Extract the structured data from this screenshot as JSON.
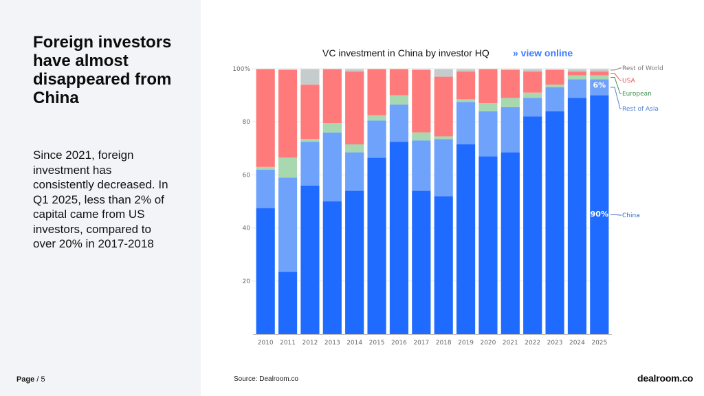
{
  "headline": "Foreign investors have almost disappeared from China",
  "body_text": "Since 2021, foreign investment has consistently decreased. In Q1 2025, less than 2% of capital came from US investors, compared to over 20% in 2017-2018",
  "footer": {
    "page_label": "Page",
    "page_number": "/ 5",
    "source": "Source:  Dealroom.co",
    "logo": "dealroom.co"
  },
  "chart_data": {
    "type": "bar",
    "stacked": true,
    "title": "VC investment in China by investor HQ",
    "link_text": "» view online",
    "categories": [
      "2010",
      "2011",
      "2012",
      "2013",
      "2014",
      "2015",
      "2016",
      "2017",
      "2018",
      "2019",
      "2020",
      "2021",
      "2022",
      "2023",
      "2024",
      "2025"
    ],
    "y_ticks": [
      "20",
      "40",
      "60",
      "80",
      "100%"
    ],
    "ylim": [
      0,
      100
    ],
    "series": [
      {
        "name": "China",
        "color": "#1f6bff",
        "values": [
          47.5,
          23.5,
          56,
          50,
          54,
          66.5,
          72.5,
          54,
          52,
          71.5,
          67,
          68.5,
          82,
          84,
          89,
          90
        ]
      },
      {
        "name": "Rest of Asia",
        "color": "#6ea2fb",
        "values": [
          14.5,
          35.5,
          16.5,
          26,
          14.5,
          14,
          14,
          19,
          21.5,
          16,
          17,
          17,
          7,
          9,
          7,
          6
        ]
      },
      {
        "name": "European",
        "color": "#a8d8b0",
        "values": [
          1,
          7.5,
          1,
          3.5,
          3,
          2,
          3.5,
          3,
          1,
          1,
          3,
          3.5,
          2,
          1,
          1.5,
          1.5
        ]
      },
      {
        "name": "USA",
        "color": "#ff7b7b",
        "values": [
          37,
          33,
          20.5,
          20.5,
          27.5,
          17.5,
          10,
          23.5,
          22.5,
          10.5,
          13,
          10.5,
          8,
          5.5,
          1.5,
          1.5
        ]
      },
      {
        "name": "Rest of World",
        "color": "#c6cccc",
        "values": [
          0,
          0.5,
          6,
          0,
          1,
          0,
          0,
          0.5,
          3,
          1,
          0,
          0.5,
          1,
          0.5,
          1,
          1
        ]
      }
    ],
    "legend": [
      {
        "label": "Rest of World",
        "color": "#777777"
      },
      {
        "label": "USA",
        "color": "#e05454"
      },
      {
        "label": "European",
        "color": "#3f8f4a"
      },
      {
        "label": "Rest of Asia",
        "color": "#4d7fd6"
      },
      {
        "label": "China",
        "color": "#3264c4"
      }
    ],
    "annotations": [
      {
        "text": "6%",
        "series": "Rest of Asia",
        "category": "2025"
      },
      {
        "text": "90%",
        "series": "China",
        "category": "2025"
      }
    ]
  }
}
